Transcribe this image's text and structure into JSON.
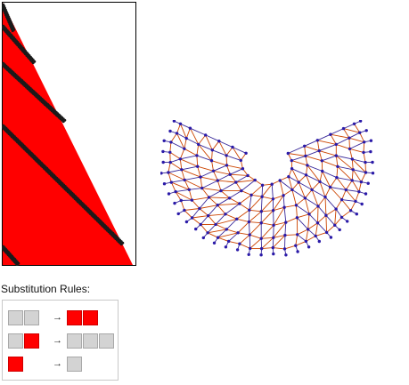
{
  "rules_title": "Substitution Rules:",
  "arrow_glyph": "→",
  "rules": [
    {
      "lhs": [
        "gray",
        "gray"
      ],
      "rhs": [
        "red",
        "red"
      ]
    },
    {
      "lhs": [
        "gray",
        "red"
      ],
      "rhs": [
        "gray",
        "gray",
        "gray"
      ]
    },
    {
      "lhs": [
        "red"
      ],
      "rhs": [
        "gray"
      ]
    }
  ],
  "colors": {
    "red": "#ff0000",
    "gray": "#d3d3d3",
    "cell_border": "#a8a8a8",
    "node": "#2a1aa8",
    "edge_a": "#cc4400",
    "edge_b": "#3a2a9a"
  }
}
